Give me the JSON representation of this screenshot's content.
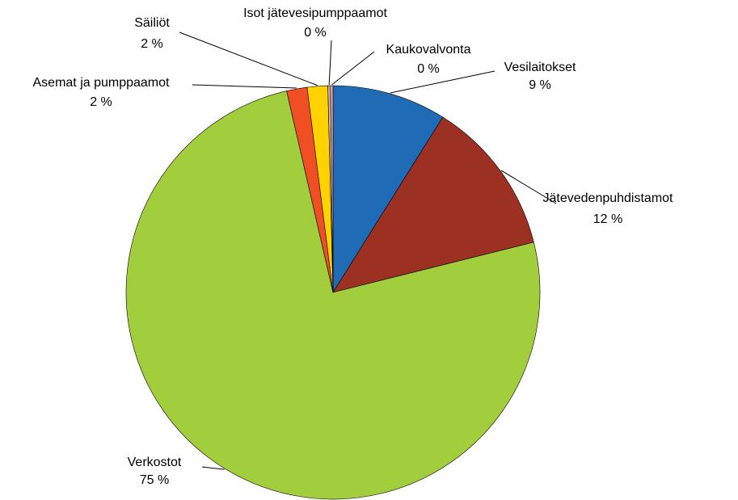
{
  "chart_data": {
    "type": "pie",
    "categories": [
      "Vesilaitokset",
      "Jätevedenpuhdistamot",
      "Verkostot",
      "Asemat ja pumppaamot",
      "Säiliöt",
      "Isot jätevesipumppaamot",
      "Kaukovalvonta"
    ],
    "values": [
      8.9,
      12.2,
      75.3,
      1.6,
      1.6,
      0.2,
      0.2
    ],
    "value_labels": [
      "9 %",
      "12 %",
      "75 %",
      "2 %",
      "2 %",
      "0 %",
      "0 %"
    ],
    "colors": [
      "#1f6bb5",
      "#9c3022",
      "#a2cd3c",
      "#f04e23",
      "#ffd200",
      "#c8b8a8",
      "#f2a0a0"
    ]
  }
}
